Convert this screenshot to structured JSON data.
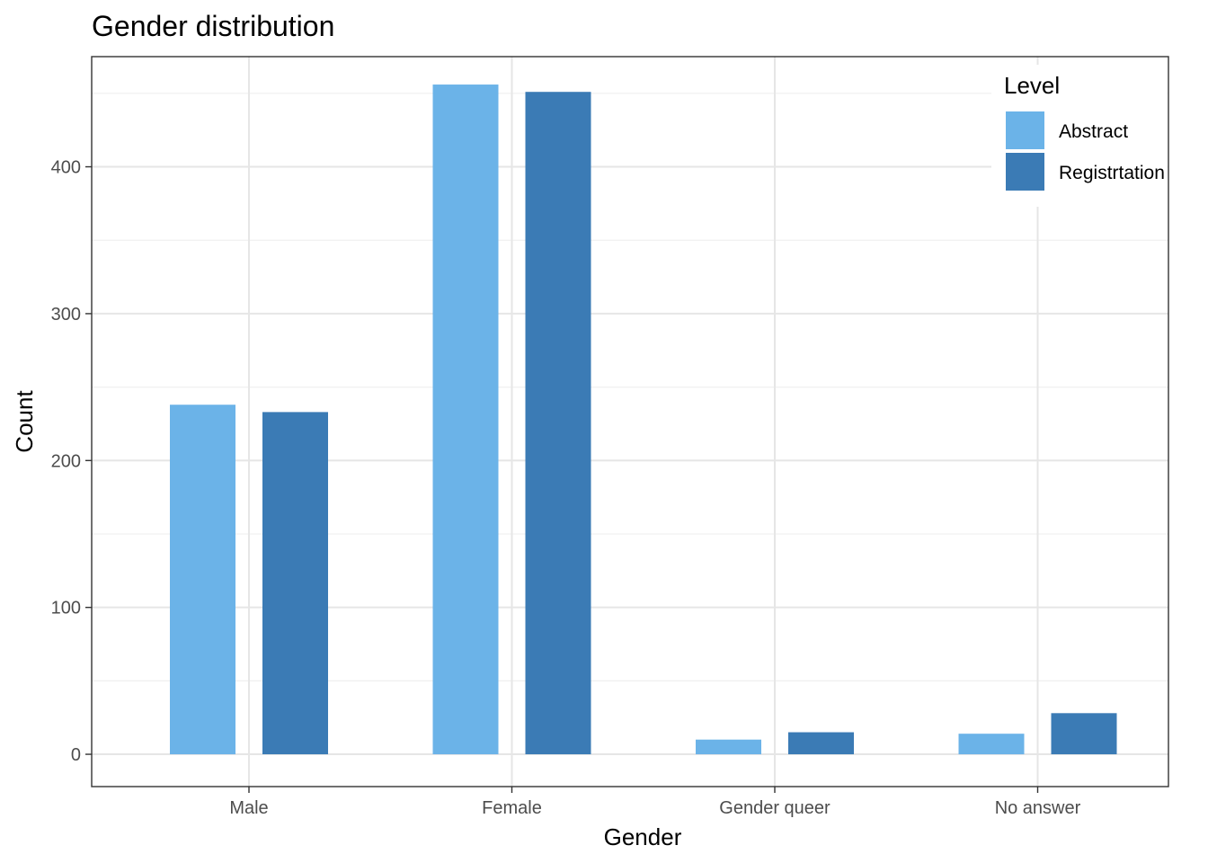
{
  "chart_data": {
    "type": "bar",
    "title": "Gender distribution",
    "xlabel": "Gender",
    "ylabel": "Count",
    "categories": [
      "Male",
      "Female",
      "Gender queer",
      "No answer"
    ],
    "series": [
      {
        "name": "Abstract",
        "values": [
          238,
          456,
          10,
          14
        ],
        "color": "#6bb3e8"
      },
      {
        "name": "Registrtation",
        "values": [
          233,
          451,
          15,
          28
        ],
        "color": "#3b7bb5"
      }
    ],
    "ylim": [
      -22,
      475
    ],
    "yticks": [
      0,
      100,
      200,
      300,
      400
    ],
    "ytick_labels": [
      "0",
      "100",
      "200",
      "300",
      "400"
    ],
    "grid": true,
    "legend": {
      "title": "Level",
      "position": "top-right"
    },
    "colors": {
      "panel_border": "#333333",
      "grid_major": "#e6e6e6",
      "grid_minor": "#f0f0f0",
      "tick_text": "#4d4d4d"
    }
  }
}
